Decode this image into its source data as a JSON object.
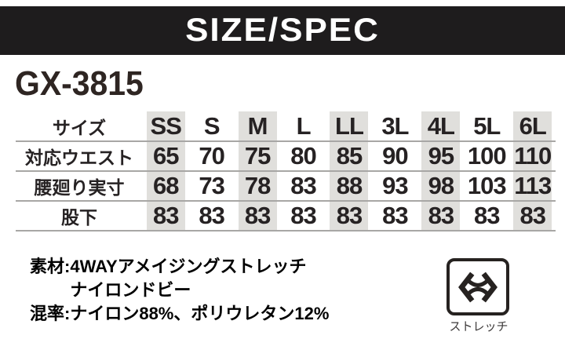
{
  "header": {
    "title": "SIZE/SPEC"
  },
  "product": {
    "code": "GX-3815"
  },
  "spec_table": {
    "corner_label": "サイズ",
    "sizes": [
      "SS",
      "S",
      "M",
      "L",
      "LL",
      "3L",
      "4L",
      "5L",
      "6L"
    ],
    "rows": [
      {
        "label": "対応ウエスト",
        "values": [
          "65",
          "70",
          "75",
          "80",
          "85",
          "90",
          "95",
          "100",
          "110"
        ]
      },
      {
        "label": "腰廻り実寸",
        "values": [
          "68",
          "73",
          "78",
          "83",
          "88",
          "93",
          "98",
          "103",
          "113"
        ]
      },
      {
        "label": "股下",
        "values": [
          "83",
          "83",
          "83",
          "83",
          "83",
          "83",
          "83",
          "83",
          "83"
        ]
      }
    ]
  },
  "details": {
    "material_label": "素材:",
    "material_line1": "4WAYアメイジングストレッチ",
    "material_line2": "ナイロンドビー",
    "blend_label": "混率:",
    "blend_value": "ナイロン88%、ポリウレタン12%"
  },
  "feature": {
    "icon": "stretch-arrow-icon",
    "label": "ストレッチ"
  },
  "colors": {
    "header_bar": "#1e1c1d",
    "title_text": "#ffffff",
    "model_text": "#2e2522",
    "table_stripe": "#e0dfdc",
    "table_rule": "#a8a7a5",
    "body_text": "#1a1717"
  }
}
